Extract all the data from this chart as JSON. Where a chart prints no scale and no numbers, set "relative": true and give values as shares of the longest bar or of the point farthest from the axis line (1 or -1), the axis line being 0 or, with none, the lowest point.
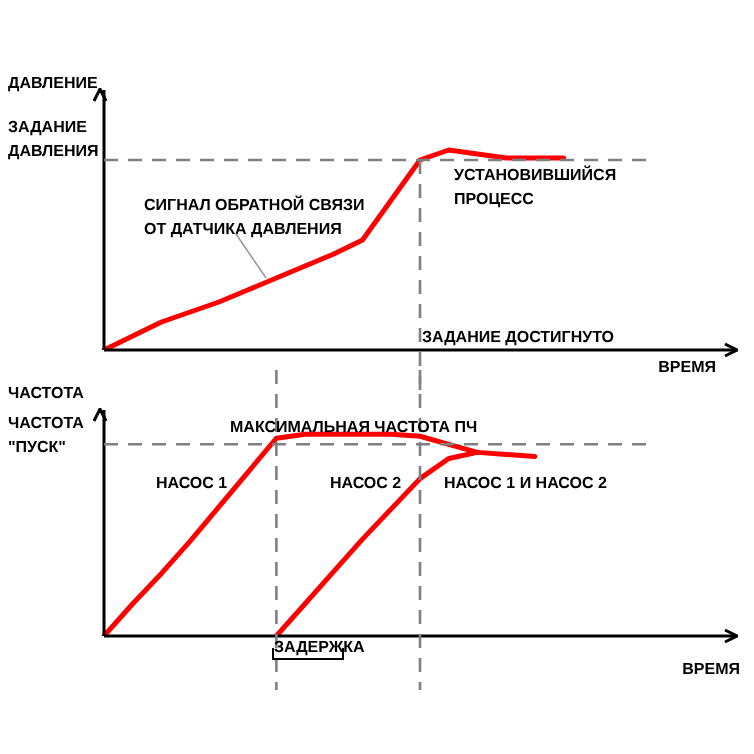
{
  "chart_data": [
    {
      "type": "line",
      "relative": true,
      "ylabel": "ДАВЛЕНИЕ",
      "xlabel": "ВРЕМЯ",
      "categories": [
        null,
        null,
        null,
        null,
        null,
        null,
        null,
        null,
        null,
        null,
        null,
        null,
        null,
        null,
        null,
        null,
        null,
        null,
        null,
        null,
        null,
        null,
        null
      ],
      "series": [
        {
          "color": "#ff0000",
          "values": [
            0,
            0.07,
            0.14,
            0.19,
            0.24,
            0.3,
            0.36,
            0.42,
            0.48,
            0.55,
            0.75,
            0.95,
            1.0,
            0.98,
            0.96,
            0.96,
            0.96,
            null,
            null,
            null,
            null,
            null,
            null
          ]
        }
      ],
      "ref_lines": [
        {
          "axis": "y",
          "value": 0.95,
          "label": "ЗАДАНИЕ\nДАВЛЕНИЯ",
          "color": "#808080",
          "line_style": "dashed"
        }
      ],
      "annotations": [
        "СИГНАЛ ОБРАТНОЙ СВЯЗИ\nОТ ДАТЧИКА ДАВЛЕНИЯ",
        "УСТАНОВИВШИЙСЯ\nПРОЦЕСС",
        "ЗАДАНИЕ ДОСТИГНУТО"
      ],
      "tick_labels": false,
      "marker": "none",
      "line_style": "solid"
    },
    {
      "type": "line",
      "relative": true,
      "ylabel": "ЧАСТОТА",
      "xlabel": "ВРЕМЯ",
      "categories": [
        null,
        null,
        null,
        null,
        null,
        null,
        null,
        null,
        null,
        null,
        null,
        null,
        null,
        null,
        null,
        null,
        null,
        null,
        null,
        null,
        null,
        null,
        null
      ],
      "series": [
        {
          "color": "#ff0000",
          "values": [
            0,
            0.16,
            0.31,
            0.47,
            0.64,
            0.81,
            0.98,
            1.0,
            1.0,
            1.0,
            1.0,
            0.99,
            0.95,
            0.91,
            0.9,
            0.89,
            null,
            null,
            null,
            null,
            null,
            null,
            null
          ]
        },
        {
          "color": "#ff0000",
          "values": [
            null,
            null,
            null,
            null,
            null,
            null,
            0,
            0.16,
            0.32,
            0.48,
            0.63,
            0.78,
            0.88,
            0.91,
            null,
            null,
            null,
            null,
            null,
            null,
            null,
            null,
            null
          ]
        }
      ],
      "ref_lines": [
        {
          "axis": "y",
          "value": 0.95,
          "label": "ЧАСТОТА\n\"ПУСК\"",
          "color": "#808080",
          "line_style": "dashed"
        }
      ],
      "annotations": [
        "МАКСИМАЛЬНАЯ ЧАСТОТА ПЧ",
        "НАСОС 1",
        "НАСОС 2",
        "НАСОС 1 И НАСОС 2",
        "ЗАДЕРЖКА"
      ],
      "tick_labels": false,
      "marker": "none",
      "line_style": "solid"
    }
  ]
}
